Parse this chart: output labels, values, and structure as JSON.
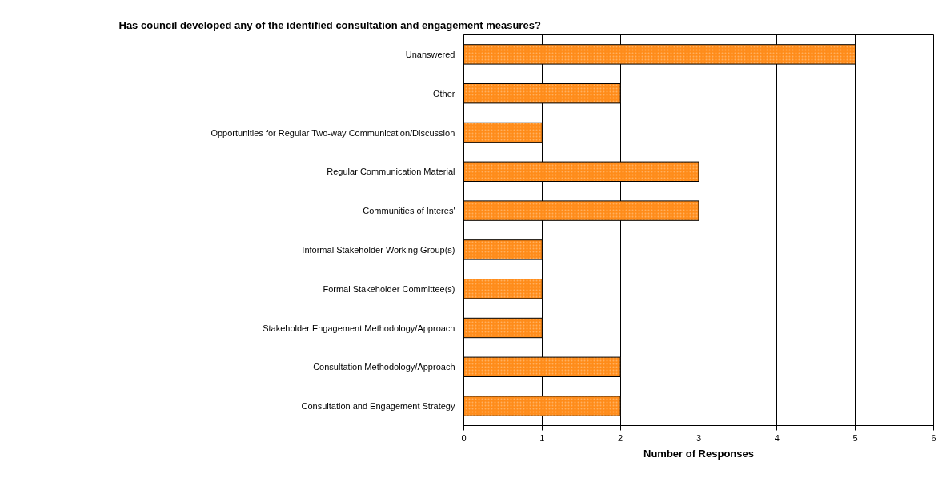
{
  "chart_data": {
    "type": "bar",
    "orientation": "horizontal",
    "title": "Has council developed any of the identified consultation and engagement measures?",
    "xlabel": "Number of Responses",
    "categories": [
      "Unanswered",
      "Other",
      "Opportunities for Regular Two-way Communication/Discussion",
      "Regular Communication Material",
      "Communities of Interes'",
      "Informal Stakeholder Working Group(s)",
      "Formal Stakeholder Committee(s)",
      "Stakeholder Engagement Methodology/Approach",
      "Consultation Methodology/Approach",
      "Consultation and Engagement Strategy"
    ],
    "values": [
      5,
      2,
      1,
      3,
      3,
      1,
      1,
      1,
      2,
      2
    ],
    "color": "#ff8c1a",
    "xlim": [
      0,
      6
    ],
    "xticks": [
      0,
      1,
      2,
      3,
      4,
      5,
      6
    ],
    "grid": "x"
  }
}
